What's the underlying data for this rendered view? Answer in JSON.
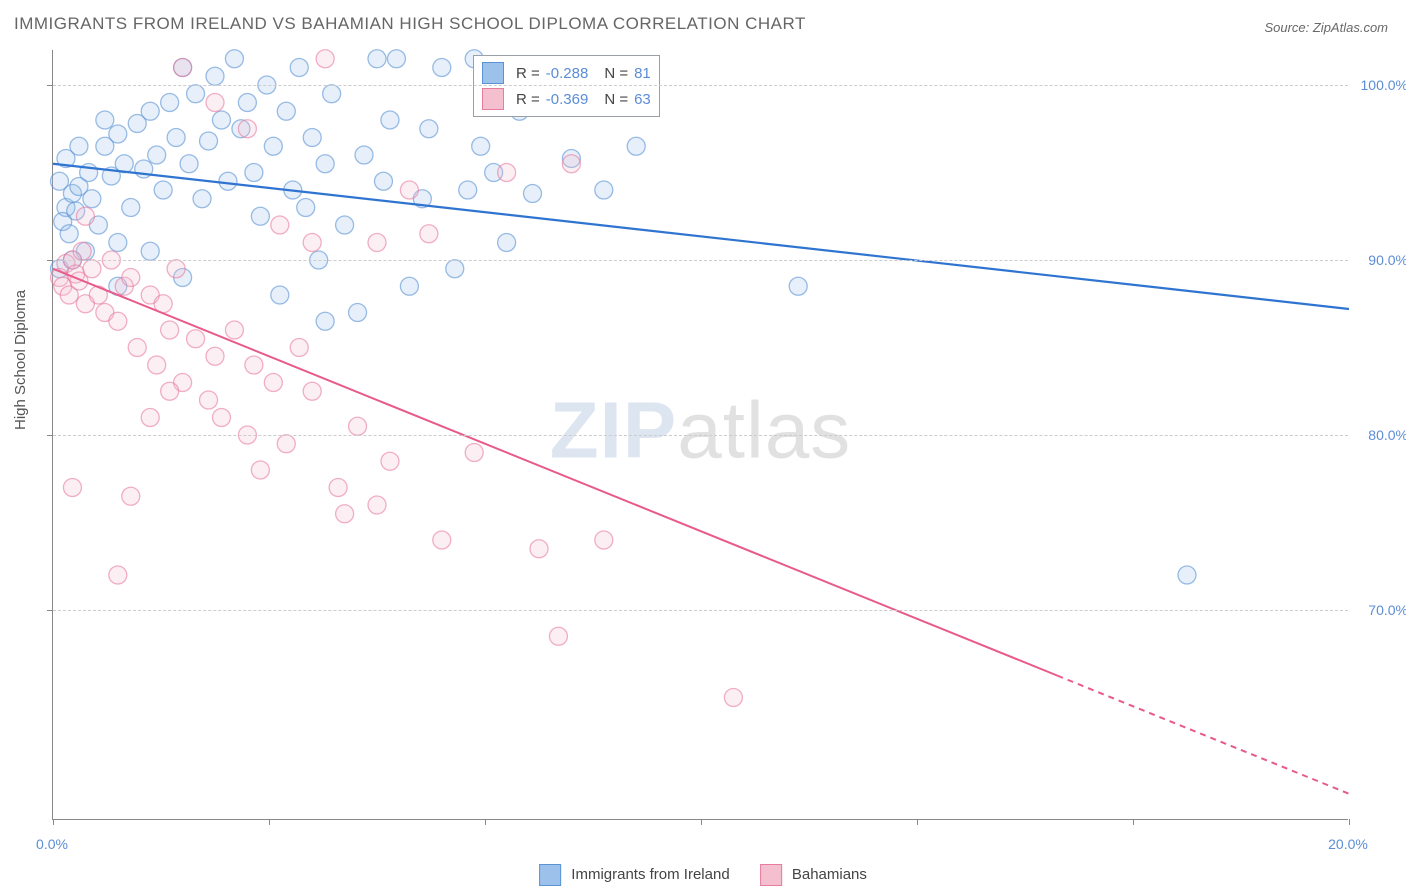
{
  "title": "IMMIGRANTS FROM IRELAND VS BAHAMIAN HIGH SCHOOL DIPLOMA CORRELATION CHART",
  "source_label": "Source: ZipAtlas.com",
  "watermark": {
    "part1": "ZIP",
    "part2": "atlas"
  },
  "ylabel": "High School Diploma",
  "chart": {
    "type": "scatter",
    "xlim": [
      0.0,
      20.0
    ],
    "ylim": [
      58.0,
      102.0
    ],
    "x_ticks": [
      0.0,
      20.0
    ],
    "x_tick_labels": [
      "0.0%",
      "20.0%"
    ],
    "x_minor_ticks": [
      3.33,
      6.67,
      10.0,
      13.33,
      16.67
    ],
    "y_ticks": [
      70.0,
      80.0,
      90.0,
      100.0
    ],
    "y_tick_labels": [
      "70.0%",
      "80.0%",
      "90.0%",
      "100.0%"
    ],
    "grid_color": "#cccccc",
    "background_color": "#ffffff",
    "axis_color": "#888888",
    "point_radius": 9,
    "series": [
      {
        "name": "Immigrants from Ireland",
        "color_fill": "#9cc1eb",
        "color_stroke": "#5a93d4",
        "line_color": "#2f74d0",
        "line_width": 2.2,
        "R": "-0.288",
        "N": "81",
        "regression": {
          "x1": 0.0,
          "y1": 95.5,
          "x2": 20.0,
          "y2": 87.2,
          "dashed_x_start": null
        },
        "points": [
          [
            0.1,
            94.5
          ],
          [
            0.2,
            93.0
          ],
          [
            0.15,
            92.2
          ],
          [
            0.3,
            93.8
          ],
          [
            0.25,
            91.5
          ],
          [
            0.4,
            94.2
          ],
          [
            0.35,
            92.8
          ],
          [
            0.5,
            90.5
          ],
          [
            0.6,
            93.5
          ],
          [
            0.55,
            95.0
          ],
          [
            0.7,
            92.0
          ],
          [
            0.8,
            96.5
          ],
          [
            0.9,
            94.8
          ],
          [
            1.0,
            97.2
          ],
          [
            1.1,
            95.5
          ],
          [
            1.2,
            93.0
          ],
          [
            1.3,
            97.8
          ],
          [
            1.4,
            95.2
          ],
          [
            1.5,
            98.5
          ],
          [
            1.6,
            96.0
          ],
          [
            1.7,
            94.0
          ],
          [
            1.8,
            99.0
          ],
          [
            1.9,
            97.0
          ],
          [
            2.0,
            101.0
          ],
          [
            2.1,
            95.5
          ],
          [
            2.2,
            99.5
          ],
          [
            2.3,
            93.5
          ],
          [
            2.4,
            96.8
          ],
          [
            2.5,
            100.5
          ],
          [
            2.6,
            98.0
          ],
          [
            2.7,
            94.5
          ],
          [
            2.8,
            101.5
          ],
          [
            2.9,
            97.5
          ],
          [
            3.0,
            99.0
          ],
          [
            3.1,
            95.0
          ],
          [
            3.2,
            92.5
          ],
          [
            3.3,
            100.0
          ],
          [
            3.4,
            96.5
          ],
          [
            3.5,
            88.0
          ],
          [
            3.6,
            98.5
          ],
          [
            3.7,
            94.0
          ],
          [
            3.8,
            101.0
          ],
          [
            3.9,
            93.0
          ],
          [
            4.0,
            97.0
          ],
          [
            4.1,
            90.0
          ],
          [
            4.2,
            95.5
          ],
          [
            4.3,
            99.5
          ],
          [
            4.5,
            92.0
          ],
          [
            4.7,
            87.0
          ],
          [
            4.8,
            96.0
          ],
          [
            5.0,
            101.5
          ],
          [
            5.1,
            94.5
          ],
          [
            5.2,
            98.0
          ],
          [
            5.3,
            101.5
          ],
          [
            5.5,
            88.5
          ],
          [
            5.7,
            93.5
          ],
          [
            5.8,
            97.5
          ],
          [
            6.0,
            101.0
          ],
          [
            6.2,
            89.5
          ],
          [
            6.4,
            94.0
          ],
          [
            6.5,
            101.5
          ],
          [
            6.6,
            96.5
          ],
          [
            6.8,
            95.0
          ],
          [
            7.0,
            91.0
          ],
          [
            7.2,
            98.5
          ],
          [
            7.4,
            93.8
          ],
          [
            8.0,
            95.8
          ],
          [
            8.5,
            94.0
          ],
          [
            9.0,
            96.5
          ],
          [
            11.5,
            88.5
          ],
          [
            0.1,
            89.5
          ],
          [
            0.3,
            90.0
          ],
          [
            1.0,
            88.5
          ],
          [
            1.5,
            90.5
          ],
          [
            2.0,
            89.0
          ],
          [
            4.2,
            86.5
          ],
          [
            0.2,
            95.8
          ],
          [
            0.4,
            96.5
          ],
          [
            0.8,
            98.0
          ],
          [
            17.5,
            72.0
          ],
          [
            1.0,
            91.0
          ]
        ]
      },
      {
        "name": "Bahamians",
        "color_fill": "#f4c0d0",
        "color_stroke": "#e87ba0",
        "line_color": "#e85a8a",
        "line_width": 2.0,
        "R": "-0.369",
        "N": "63",
        "regression": {
          "x1": 0.0,
          "y1": 89.5,
          "x2": 20.0,
          "y2": 59.5,
          "dashed_x_start": 15.5
        },
        "points": [
          [
            0.1,
            89.0
          ],
          [
            0.15,
            88.5
          ],
          [
            0.2,
            89.8
          ],
          [
            0.25,
            88.0
          ],
          [
            0.3,
            90.0
          ],
          [
            0.35,
            89.2
          ],
          [
            0.4,
            88.8
          ],
          [
            0.45,
            90.5
          ],
          [
            0.5,
            87.5
          ],
          [
            0.6,
            89.5
          ],
          [
            0.7,
            88.0
          ],
          [
            0.8,
            87.0
          ],
          [
            0.9,
            90.0
          ],
          [
            1.0,
            86.5
          ],
          [
            1.1,
            88.5
          ],
          [
            1.2,
            89.0
          ],
          [
            1.3,
            85.0
          ],
          [
            1.5,
            88.0
          ],
          [
            1.6,
            84.0
          ],
          [
            1.7,
            87.5
          ],
          [
            1.8,
            86.0
          ],
          [
            1.9,
            89.5
          ],
          [
            2.0,
            83.0
          ],
          [
            2.2,
            85.5
          ],
          [
            2.4,
            82.0
          ],
          [
            2.5,
            84.5
          ],
          [
            2.6,
            81.0
          ],
          [
            2.8,
            86.0
          ],
          [
            3.0,
            80.0
          ],
          [
            3.1,
            84.0
          ],
          [
            3.2,
            78.0
          ],
          [
            3.4,
            83.0
          ],
          [
            3.6,
            79.5
          ],
          [
            3.8,
            85.0
          ],
          [
            4.0,
            82.5
          ],
          [
            4.2,
            101.5
          ],
          [
            4.4,
            77.0
          ],
          [
            4.5,
            75.5
          ],
          [
            4.7,
            80.5
          ],
          [
            5.0,
            76.0
          ],
          [
            5.2,
            78.5
          ],
          [
            5.5,
            94.0
          ],
          [
            5.8,
            91.5
          ],
          [
            6.0,
            74.0
          ],
          [
            6.5,
            79.0
          ],
          [
            7.0,
            95.0
          ],
          [
            7.5,
            73.5
          ],
          [
            7.8,
            68.5
          ],
          [
            8.0,
            95.5
          ],
          [
            8.5,
            74.0
          ],
          [
            10.5,
            65.0
          ],
          [
            2.0,
            101.0
          ],
          [
            2.5,
            99.0
          ],
          [
            3.0,
            97.5
          ],
          [
            3.5,
            92.0
          ],
          [
            0.5,
            92.5
          ],
          [
            1.5,
            81.0
          ],
          [
            0.3,
            77.0
          ],
          [
            5.0,
            91.0
          ],
          [
            1.8,
            82.5
          ],
          [
            4.0,
            91.0
          ],
          [
            1.0,
            72.0
          ],
          [
            1.2,
            76.5
          ]
        ]
      }
    ]
  },
  "bottom_legend": [
    {
      "label": "Immigrants from Ireland",
      "fill": "#9cc1eb",
      "stroke": "#5a93d4"
    },
    {
      "label": "Bahamians",
      "fill": "#f4c0d0",
      "stroke": "#e87ba0"
    }
  ]
}
